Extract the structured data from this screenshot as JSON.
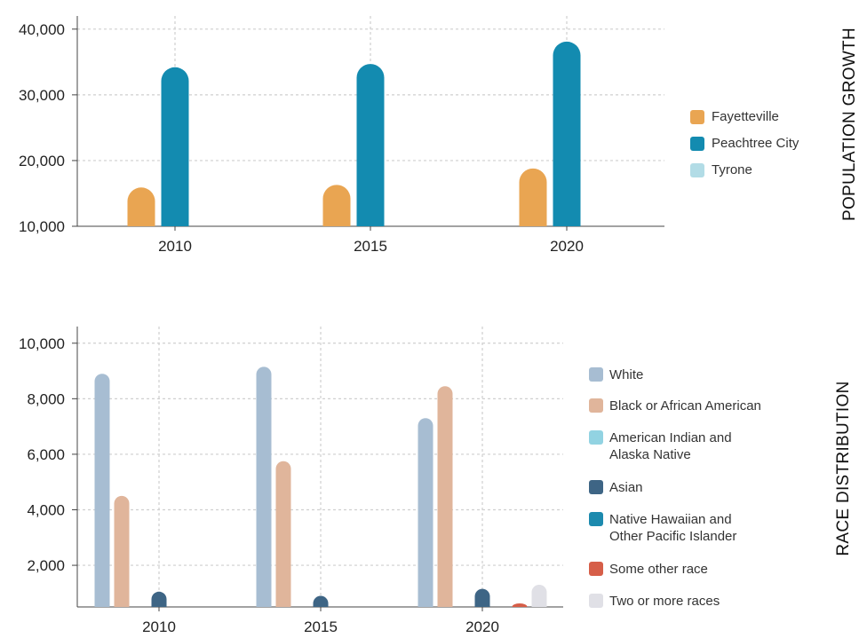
{
  "chart_data": [
    {
      "type": "bar",
      "side_title": "POPULATION GROWTH",
      "categories": [
        "2010",
        "2015",
        "2020"
      ],
      "y_ticks": [
        "10,000",
        "20,000",
        "30,000",
        "40,000"
      ],
      "ylim": [
        10000,
        42000
      ],
      "grid": true,
      "legend_position": "right",
      "series": [
        {
          "name": "Fayetteville",
          "color": "#E9A552",
          "values": [
            15900,
            16300,
            18800
          ]
        },
        {
          "name": "Peachtree City",
          "color": "#138BB0",
          "values": [
            34200,
            34700,
            38100
          ]
        },
        {
          "name": "Tyrone",
          "color": "#B2DCE6",
          "values": [
            0,
            0,
            0
          ]
        }
      ]
    },
    {
      "type": "bar",
      "side_title": "RACE DISTRIBUTION",
      "categories": [
        "2010",
        "2015",
        "2020"
      ],
      "y_ticks": [
        "2,000",
        "4,000",
        "6,000",
        "8,000",
        "10,000"
      ],
      "ylim": [
        500,
        10600
      ],
      "grid": true,
      "legend_position": "right",
      "series": [
        {
          "name": "White",
          "color": "#A7BDD2",
          "values": [
            8900,
            9150,
            7300
          ]
        },
        {
          "name": "Black or African American",
          "color": "#E0B59B",
          "values": [
            4500,
            5750,
            8450
          ]
        },
        {
          "name": "American Indian and Alaska Native",
          "color": "#92D3E2",
          "values": [
            0,
            0,
            0
          ]
        },
        {
          "name": "Asian",
          "color": "#3E6585",
          "values": [
            1050,
            900,
            1150
          ]
        },
        {
          "name": "Native Hawaiian and Other Pacific Islander",
          "color": "#1C8AAE",
          "values": [
            0,
            0,
            0
          ]
        },
        {
          "name": "Some other race",
          "color": "#D65E48",
          "values": [
            0,
            0,
            600
          ]
        },
        {
          "name": "Two or more races",
          "color": "#E0E0E6",
          "values": [
            0,
            0,
            1300
          ]
        }
      ]
    }
  ]
}
